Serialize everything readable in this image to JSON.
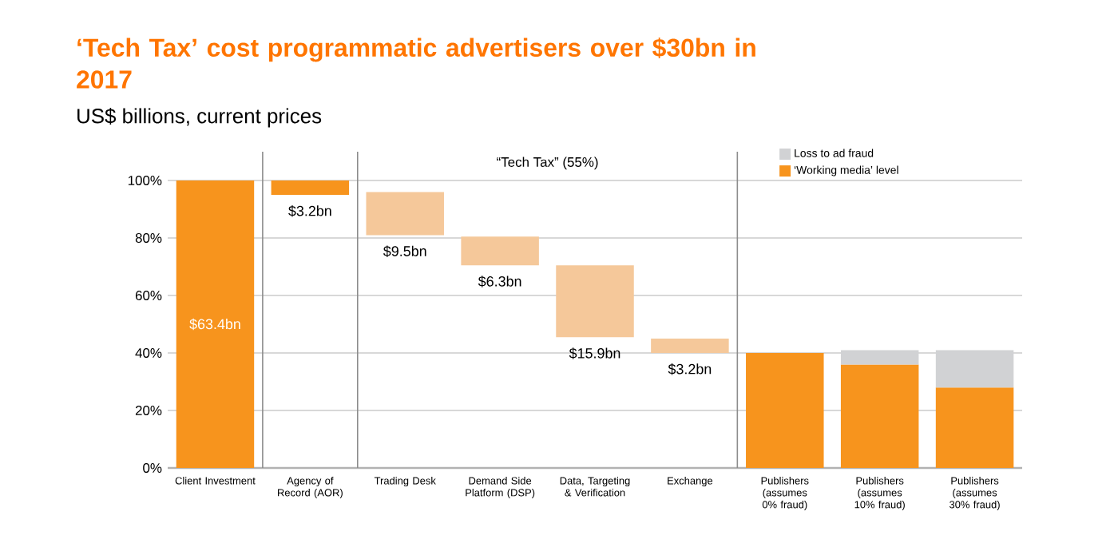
{
  "chart_data": {
    "type": "bar",
    "title": "‘Tech Tax’ cost programmatic advertisers over $30bn in 2017",
    "subtitle": "US$ billions, current prices",
    "categories": [
      "Client Investment",
      "Agency of Record (AOR)",
      "Trading Desk",
      "Demand Side Platform (DSP)",
      "Data, Targeting & Verification",
      "Exchange",
      "Publishers (assumes 0% fraud)",
      "Publishers (assumes 10% fraud)",
      "Publishers (assumes 30% fraud)"
    ],
    "series": [
      {
        "name": "‘Working media’ level",
        "color": "#f7941d",
        "values": [
          100,
          5,
          null,
          null,
          null,
          null,
          40,
          36,
          28
        ],
        "base": [
          0,
          95,
          null,
          null,
          null,
          null,
          0,
          0,
          0
        ]
      },
      {
        "color": "#f5c89a",
        "values": [
          null,
          null,
          15,
          10,
          25,
          5,
          null,
          null,
          null
        ],
        "base": [
          null,
          null,
          81,
          70.5,
          45.5,
          40,
          null,
          null,
          null
        ]
      },
      {
        "name": "Loss to ad fraud",
        "color": "#d1d2d4",
        "values": [
          null,
          null,
          null,
          null,
          null,
          null,
          null,
          5,
          13
        ],
        "base": [
          null,
          null,
          null,
          null,
          null,
          null,
          null,
          36,
          28
        ]
      }
    ],
    "ylim": [
      0,
      110
    ],
    "yticks": [
      {
        "value": 0,
        "label": "0%"
      },
      {
        "value": 20,
        "label": "20%"
      },
      {
        "value": 40,
        "label": "40%"
      },
      {
        "value": 60,
        "label": "60%"
      },
      {
        "value": 80,
        "label": "80%"
      },
      {
        "value": 100,
        "label": "100%"
      }
    ],
    "grid": "y",
    "legend": "top right",
    "annotations": [
      "“Tech Tax” (55%)",
      "$63.4bn",
      "$3.2bn",
      "$9.5bn",
      "$6.3bn",
      "$15.9bn",
      "$3.2bn"
    ]
  }
}
